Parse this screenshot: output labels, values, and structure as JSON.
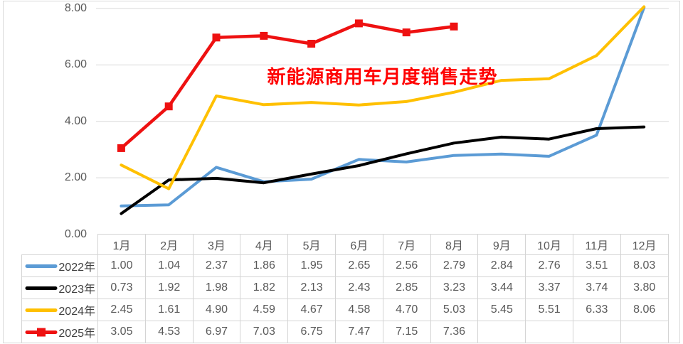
{
  "chart_data": {
    "type": "line",
    "title": "新能源商用车月度销售走势",
    "title_color": "#FF0000",
    "categories": [
      "1月",
      "2月",
      "3月",
      "4月",
      "5月",
      "6月",
      "7月",
      "8月",
      "9月",
      "10月",
      "11月",
      "12月"
    ],
    "series": [
      {
        "name": "2022年",
        "color": "#5B9BD5",
        "marker": "none",
        "values": [
          1.0,
          1.04,
          2.37,
          1.86,
          1.95,
          2.65,
          2.56,
          2.79,
          2.84,
          2.76,
          3.51,
          8.03
        ]
      },
      {
        "name": "2023年",
        "color": "#000000",
        "marker": "none",
        "values": [
          0.73,
          1.92,
          1.98,
          1.82,
          2.13,
          2.43,
          2.85,
          3.23,
          3.44,
          3.37,
          3.74,
          3.8
        ]
      },
      {
        "name": "2024年",
        "color": "#FFC000",
        "marker": "none",
        "values": [
          2.45,
          1.61,
          4.9,
          4.59,
          4.67,
          4.58,
          4.7,
          5.03,
          5.45,
          5.51,
          6.33,
          8.06
        ]
      },
      {
        "name": "2025年",
        "color": "#EE1111",
        "marker": "square",
        "values": [
          3.05,
          4.53,
          6.97,
          7.03,
          6.75,
          7.47,
          7.15,
          7.36,
          null,
          null,
          null,
          null
        ]
      }
    ],
    "y_axis": {
      "min": 0,
      "max": 8,
      "step": 2,
      "tick_labels": [
        "0.00",
        "2.00",
        "4.00",
        "6.00",
        "8.00"
      ]
    },
    "grid": true,
    "gridline_color": "#D9D9D9",
    "legend_position": "data-table-left",
    "value_decimals": 2
  }
}
